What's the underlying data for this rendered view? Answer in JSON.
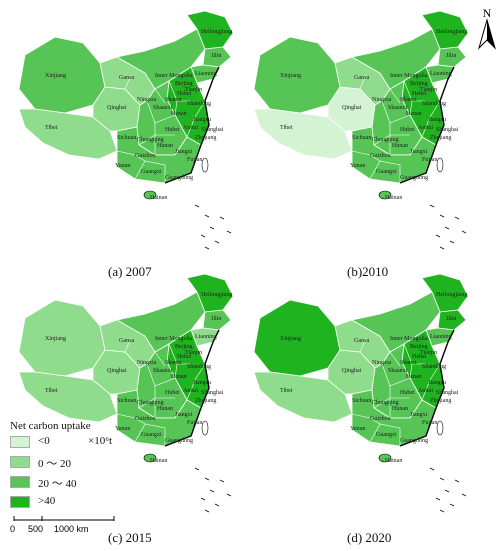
{
  "colors": {
    "lt0": "#d4f3d2",
    "c0_20": "#8fdc8c",
    "c20_40": "#56c556",
    "gt40": "#1fb41f",
    "border": "#ffffff",
    "coast": "#000000"
  },
  "panels": [
    {
      "title": "(a) 2007",
      "region_classes": {
        "xinjiang": "c20_40",
        "tibet": "c0_20",
        "qinghai": "c0_20",
        "gansu": "c0_20",
        "inner_mongolia": "c20_40",
        "heilongjiang": "gt40",
        "jilin": "c20_40",
        "liaoning": "c20_40",
        "south": "c20_40",
        "east": "gt40",
        "central": "c20_40"
      }
    },
    {
      "title": "(b)2010",
      "region_classes": {
        "xinjiang": "c20_40",
        "tibet": "lt0",
        "qinghai": "lt0",
        "gansu": "c0_20",
        "inner_mongolia": "c20_40",
        "heilongjiang": "gt40",
        "jilin": "c20_40",
        "liaoning": "c20_40",
        "south": "c20_40",
        "east": "gt40",
        "central": "c20_40"
      }
    },
    {
      "title": "(c) 2015",
      "region_classes": {
        "xinjiang": "c0_20",
        "tibet": "c0_20",
        "qinghai": "c0_20",
        "gansu": "c0_20",
        "inner_mongolia": "c20_40",
        "heilongjiang": "gt40",
        "jilin": "c20_40",
        "liaoning": "c0_20",
        "south": "c20_40",
        "east": "gt40",
        "central": "c20_40"
      }
    },
    {
      "title": "(d) 2020",
      "region_classes": {
        "xinjiang": "gt40",
        "tibet": "c0_20",
        "qinghai": "c0_20",
        "gansu": "c0_20",
        "inner_mongolia": "c20_40",
        "heilongjiang": "gt40",
        "jilin": "gt40",
        "liaoning": "c20_40",
        "south": "c20_40",
        "east": "gt40",
        "central": "c20_40"
      }
    }
  ],
  "labels": [
    "Xinjiang",
    "Tibet",
    "Qinghai",
    "Gansu",
    "Inner Mongolia",
    "Heilongjiang",
    "Jilin",
    "Liaoning",
    "Beijing",
    "Tianjin",
    "Hebei",
    "Shanxi",
    "Ningxia",
    "Shaanxi",
    "Shandong",
    "Henan",
    "Jiangsu",
    "Anhui",
    "Shanghai",
    "Hubei",
    "Sichuan",
    "Chongqing",
    "Zhejiang",
    "Hunan",
    "Jiangxi",
    "Guizhou",
    "Yunan",
    "Fujian",
    "Guangxi",
    "Guangdong",
    "Hainan"
  ],
  "legend": {
    "title": "Net carbon uptake",
    "unit": "×10⁶t",
    "items": [
      {
        "label": "<0",
        "color": "#d4f3d2"
      },
      {
        "label": "0 ～ 20",
        "color": "#8fdc8c"
      },
      {
        "label": "20 ～ 40",
        "color": "#56c556"
      },
      {
        "label": ">40",
        "color": "#1fb41f"
      }
    ]
  },
  "scalebar": {
    "ticks": [
      "0",
      "500",
      "1000 km"
    ]
  },
  "north": {
    "label": "N"
  }
}
